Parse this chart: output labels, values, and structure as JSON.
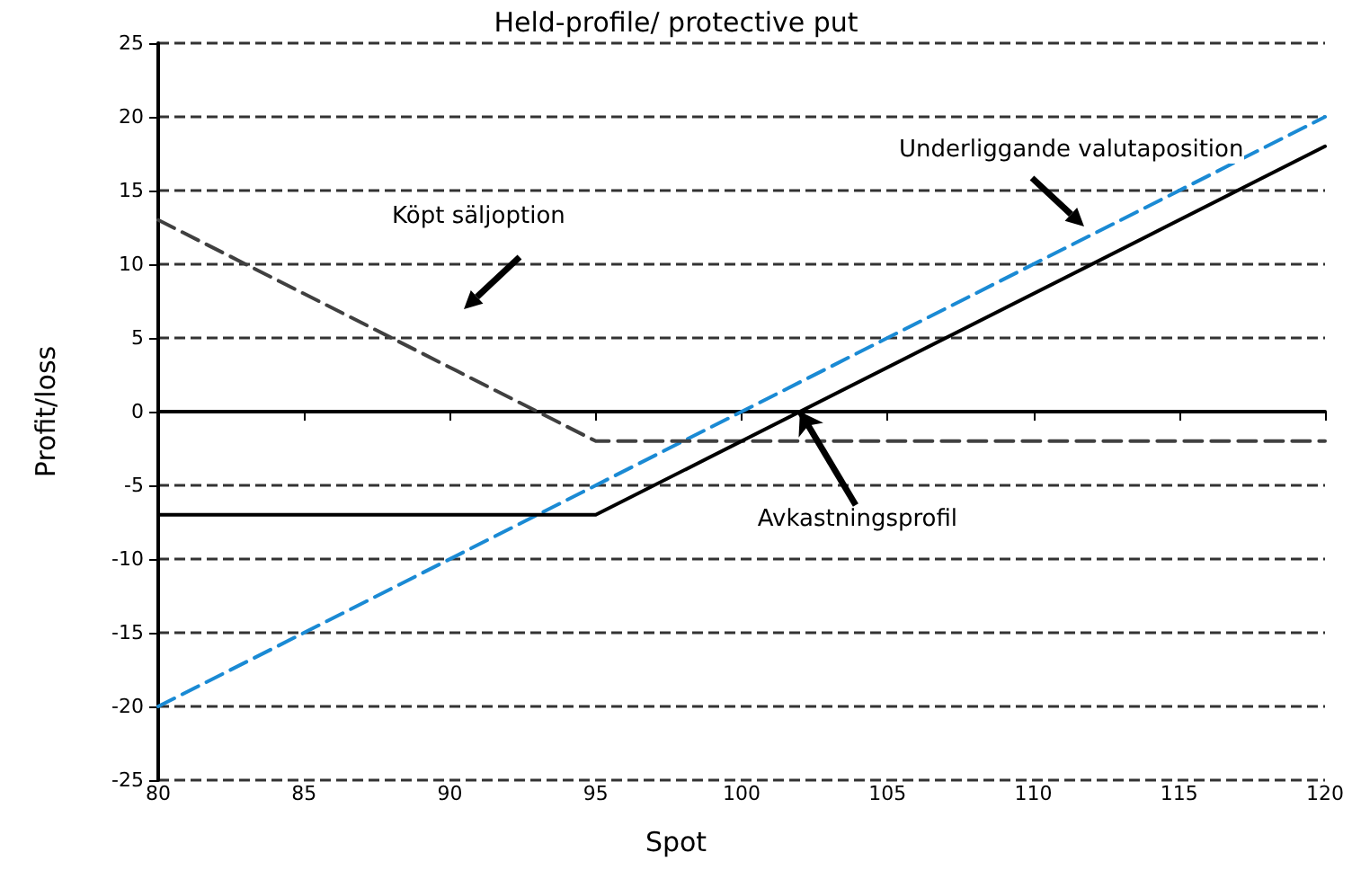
{
  "chart_data": {
    "type": "line",
    "title": "Held-profile/ protective put",
    "xlabel": "Spot",
    "ylabel": "Profit/loss",
    "xlim": [
      80,
      120
    ],
    "xticks": [
      80,
      85,
      90,
      95,
      100,
      105,
      110,
      115,
      120
    ],
    "ylim": [
      -25,
      25
    ],
    "yticks": [
      -25,
      -20,
      -15,
      -10,
      -5,
      0,
      5,
      10,
      15,
      20,
      25
    ],
    "grid": "y",
    "marker": "none",
    "series": [
      {
        "x": [
          80,
          120
        ],
        "values": [
          -20,
          20
        ],
        "color": "#1a8ad4",
        "line_style": "dashed"
      },
      {
        "x": [
          80,
          95,
          120
        ],
        "values": [
          13,
          -2,
          -2
        ],
        "color": "#404040",
        "line_style": "dashed"
      },
      {
        "x": [
          80,
          95,
          120
        ],
        "values": [
          -7,
          -7,
          18
        ],
        "color": "#000000",
        "line_style": "solid"
      }
    ],
    "annotations": [
      "Köpt säljoption",
      "Underliggande valutaposition",
      {
        "text": "Avkastningsprofil",
        "x": 102,
        "y": 0
      }
    ]
  }
}
